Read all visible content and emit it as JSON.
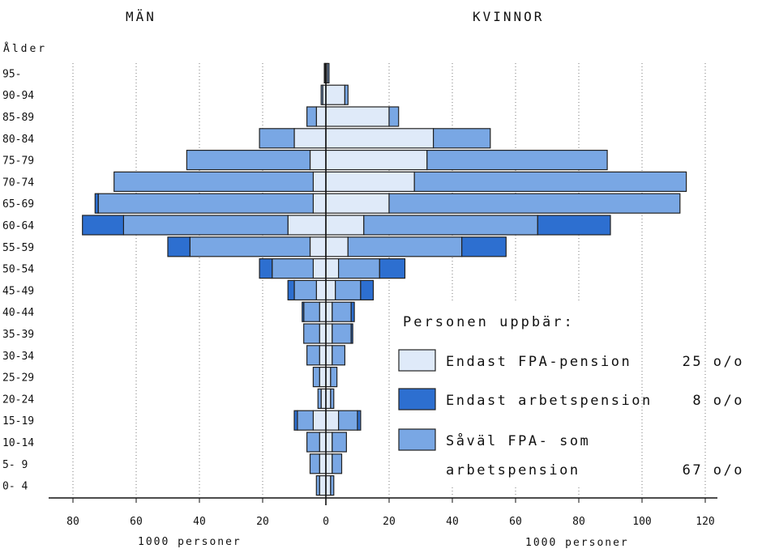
{
  "chart_data": {
    "type": "bar",
    "left_header": "MÄN",
    "right_header": "KVINNOR",
    "ylabel": "Ålder",
    "xlabel_left": "1000 personer",
    "xlabel_right": "1000 personer",
    "age_groups": [
      "95-",
      "90-94",
      "85-89",
      "80-84",
      "75-79",
      "70-74",
      "65-69",
      "60-64",
      "55-59",
      "50-54",
      "45-49",
      "40-44",
      "35-39",
      "30-34",
      "25-29",
      "20-24",
      "15-19",
      "10-14",
      "5- 9",
      "0- 4"
    ],
    "x_ticks": [
      "80",
      "60",
      "40",
      "20",
      "0",
      "20",
      "40",
      "60",
      "80",
      "100",
      "120"
    ],
    "x_tick_values": [
      -80,
      -60,
      -40,
      -20,
      0,
      20,
      40,
      60,
      80,
      100,
      120
    ],
    "xlim": [
      -80,
      120
    ],
    "grid": true,
    "legend_title": "Personen uppbär:",
    "series": [
      {
        "name": "Endast FPA-pension",
        "color": "#dfeaf9",
        "legend_lines": [
          "Endast FPA-pension"
        ],
        "share": "25 o/o",
        "men": [
          0.3,
          1,
          3,
          10,
          5,
          4,
          4,
          12,
          5,
          4,
          3,
          2,
          2,
          2,
          2,
          1.5,
          4,
          2,
          2,
          2
        ],
        "women": [
          0.5,
          6,
          20,
          34,
          32,
          28,
          20,
          12,
          7,
          4,
          3,
          2,
          2,
          2,
          1.5,
          1.5,
          4,
          2,
          2,
          1.5
        ]
      },
      {
        "name": "Endast arbetspension",
        "color": "#2d6fd0",
        "legend_lines": [
          "Endast arbetspension"
        ],
        "share": "8 o/o",
        "men": [
          0,
          0,
          0,
          0,
          0,
          0,
          1,
          13,
          7,
          4,
          2,
          0.5,
          0,
          0,
          0,
          0,
          1,
          0,
          0,
          0
        ],
        "women": [
          0,
          0,
          0,
          0,
          0,
          0,
          0,
          23,
          14,
          8,
          4,
          1,
          0.5,
          0,
          0,
          0,
          1,
          0,
          0,
          0
        ]
      },
      {
        "name": "Såväl FPA- som arbetspension",
        "color": "#79a7e4",
        "legend_lines": [
          "Såväl FPA- som",
          "arbetspension"
        ],
        "share": "67 o/o",
        "men": [
          0.2,
          0.5,
          3,
          11,
          39,
          63,
          68,
          52,
          38,
          13,
          7,
          5,
          5,
          4,
          2,
          1,
          5,
          4,
          3,
          1
        ],
        "women": [
          0.5,
          1,
          3,
          18,
          57,
          86,
          92,
          55,
          36,
          13,
          8,
          6,
          6,
          4,
          2,
          1,
          6,
          4.5,
          3,
          1
        ]
      }
    ]
  }
}
